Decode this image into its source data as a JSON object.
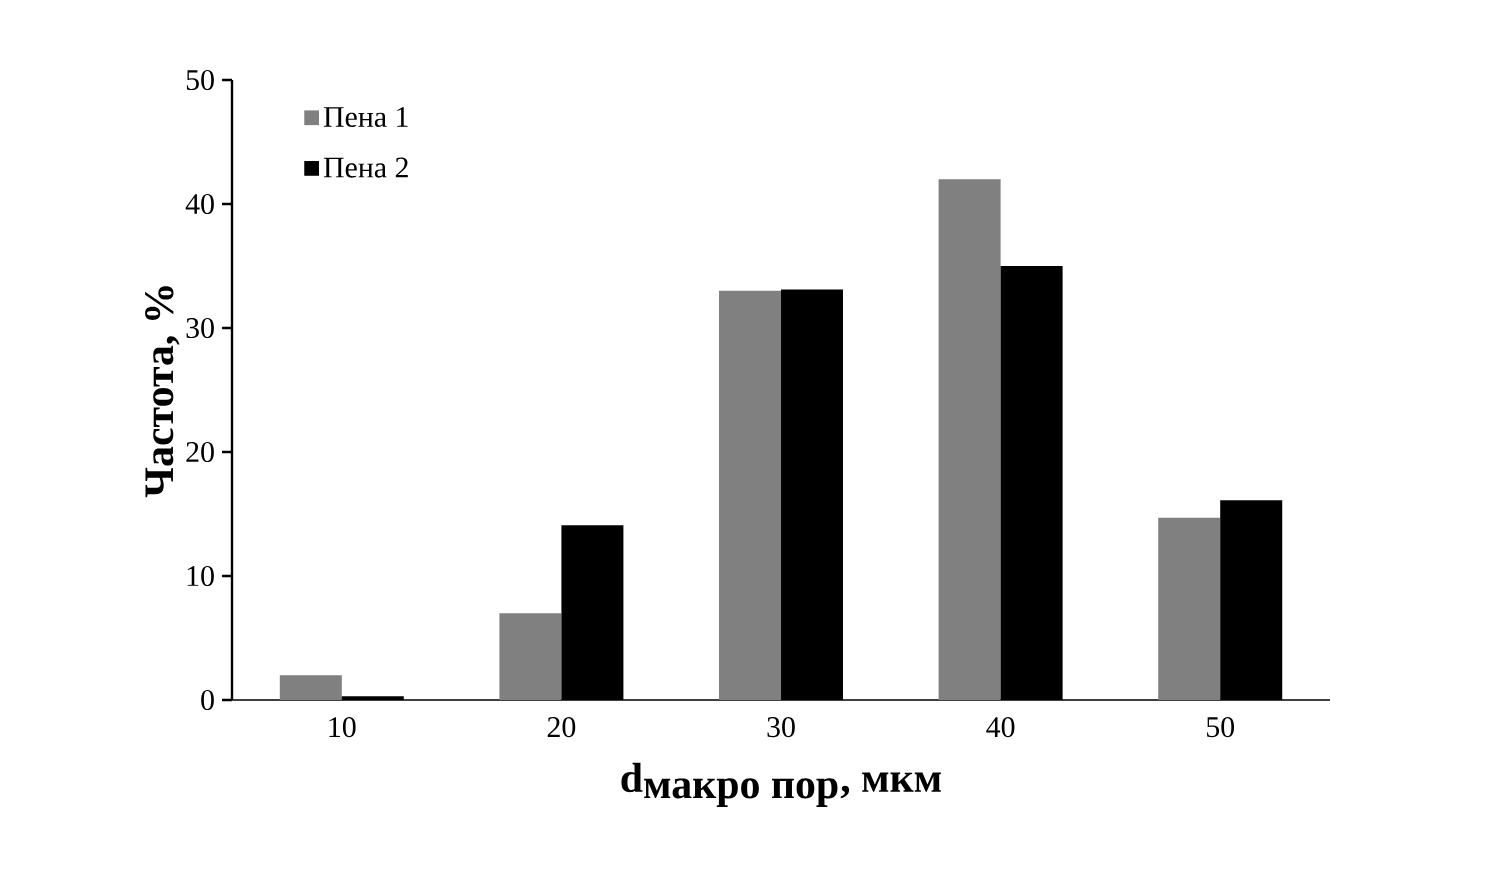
{
  "chart_data": {
    "type": "bar",
    "xlabel": "\\textbf{d}_{\\textbf{макро пор}}\\textbf{, мкм}",
    "ylabel": "Частота, %",
    "categories": [
      "10",
      "20",
      "30",
      "40",
      "50"
    ],
    "series": [
      {
        "name": "Пена 1",
        "color": "#808080",
        "values": [
          2.0,
          7.0,
          33.0,
          42.0,
          14.7
        ]
      },
      {
        "name": "Пена 2",
        "color": "#000000",
        "values": [
          0.3,
          14.1,
          33.1,
          35.0,
          16.1
        ]
      }
    ],
    "ylim": [
      0,
      50
    ],
    "yticks": [
      0,
      10,
      20,
      30,
      40,
      50
    ],
    "grid": false,
    "legend": "top left"
  }
}
